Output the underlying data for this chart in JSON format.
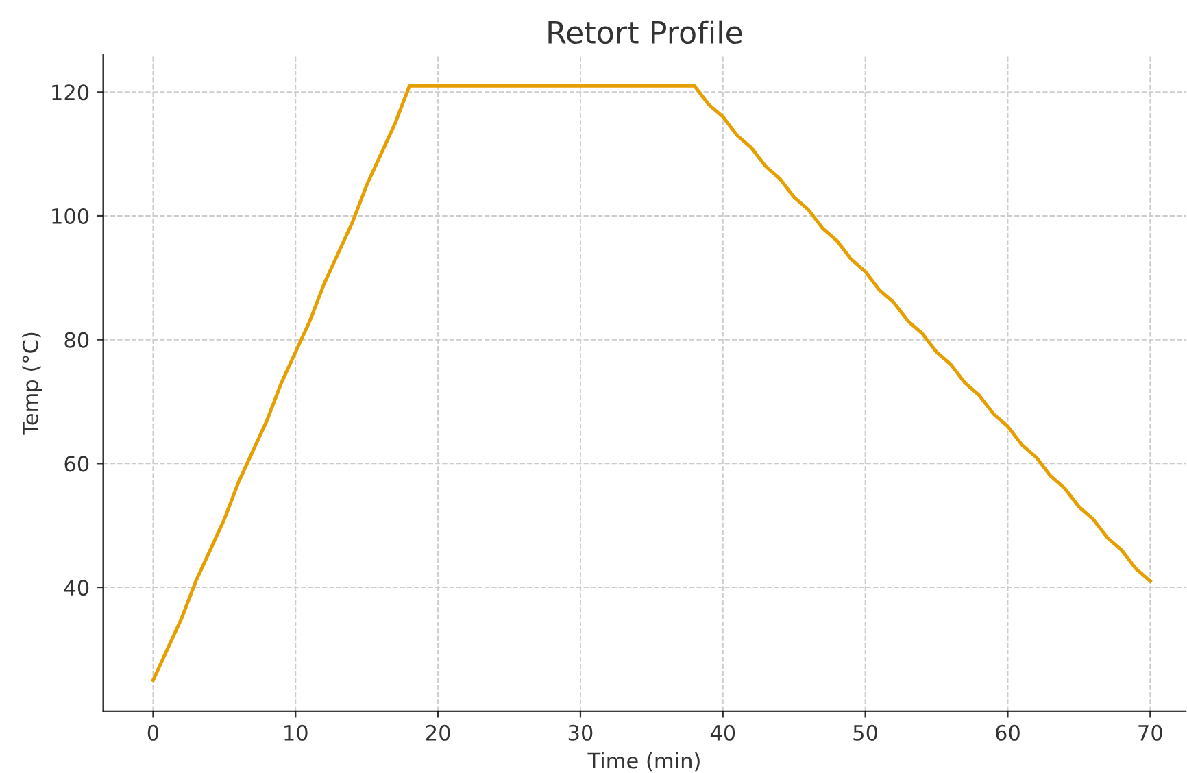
{
  "chart_data": {
    "type": "line",
    "title": "Retort Profile",
    "xlabel": "Time (min)",
    "ylabel": "Temp (°C)",
    "x": [
      0,
      1,
      2,
      3,
      4,
      5,
      6,
      7,
      8,
      9,
      10,
      11,
      12,
      13,
      14,
      15,
      16,
      17,
      18,
      19,
      20,
      21,
      22,
      23,
      24,
      25,
      26,
      27,
      28,
      29,
      30,
      31,
      32,
      33,
      34,
      35,
      36,
      37,
      38,
      39,
      40,
      41,
      42,
      43,
      44,
      45,
      46,
      47,
      48,
      49,
      50,
      51,
      52,
      53,
      54,
      55,
      56,
      57,
      58,
      59,
      60,
      61,
      62,
      63,
      64,
      65,
      66,
      67,
      68,
      69,
      70
    ],
    "series": [
      {
        "color": "#e69f00",
        "values": [
          25,
          30,
          35,
          41,
          46,
          51,
          57,
          62,
          67,
          73,
          78,
          83,
          89,
          94,
          99,
          105,
          110,
          115,
          121,
          121,
          121,
          121,
          121,
          121,
          121,
          121,
          121,
          121,
          121,
          121,
          121,
          121,
          121,
          121,
          121,
          121,
          121,
          121,
          121,
          118,
          116,
          113,
          111,
          108,
          106,
          103,
          101,
          98,
          96,
          93,
          91,
          88,
          86,
          83,
          81,
          78,
          76,
          73,
          71,
          68,
          66,
          63,
          61,
          58,
          56,
          53,
          51,
          48,
          46,
          43,
          41
        ]
      }
    ],
    "xlim": [
      -3.5,
      72.5
    ],
    "ylim": [
      20,
      126
    ],
    "xticks": [
      0,
      10,
      20,
      30,
      40,
      50,
      60,
      70
    ],
    "yticks": [
      40,
      60,
      80,
      100,
      120
    ],
    "grid": true,
    "marker": "none",
    "line_style": "solid"
  }
}
